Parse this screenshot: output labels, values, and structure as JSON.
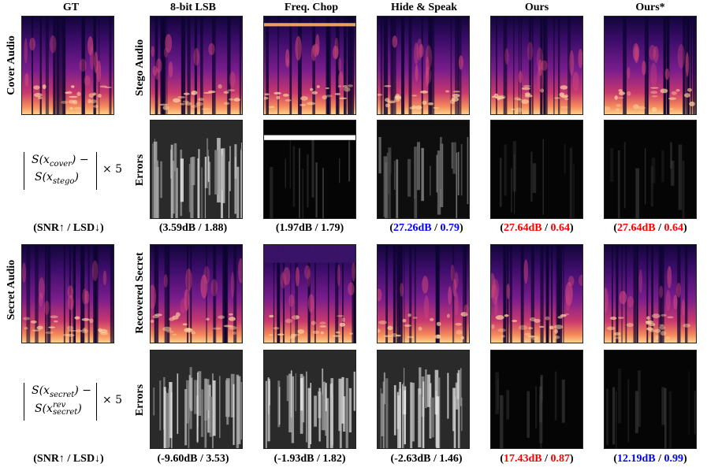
{
  "columns": {
    "gt": "GT",
    "lsb": "8-bit LSB",
    "freq": "Freq. Chop",
    "hide": "Hide & Speak",
    "ours": "Ours",
    "ours_star": "Ours*"
  },
  "row_labels": {
    "cover_audio": "Cover Audio",
    "stego_audio": "Stego Audio",
    "errors_top": "Errors",
    "secret_audio": "Secret Audio",
    "recovered_secret": "Recovered Secret",
    "errors_bottom": "Errors"
  },
  "formulas": {
    "top_line1": "S(x",
    "top_line1_sub": "cover",
    "top_line1_end": ") −",
    "top_line2": "S(x",
    "top_line2_sub": "stego",
    "top_line2_end": ")",
    "bottom_line1": "S(x",
    "bottom_line1_sub": "secret",
    "bottom_line1_end": ") −",
    "bottom_line2": "S(x",
    "bottom_line2_sup": "rev",
    "bottom_line2_sub": "secret",
    "bottom_line2_end": ")",
    "times": "× 5"
  },
  "metric_header_top": "(SNR↑ / LSD↓)",
  "metric_header_bottom": "(SNR↑ / LSD↓)",
  "metrics_top": {
    "lsb": "(3.59dB / 1.88)",
    "freq": "(1.97dB / 1.79)",
    "hide_open": "(",
    "hide_snr": "27.26dB",
    "hide_sep": " / ",
    "hide_lsd": "0.79",
    "hide_close": ")",
    "ours_open": "(",
    "ours_snr": "27.64dB",
    "ours_sep": " / ",
    "ours_lsd": "0.64",
    "ours_close": ")",
    "ours_star_open": "(",
    "ours_star_snr": "27.64dB",
    "ours_star_sep": " / ",
    "ours_star_lsd": "0.64",
    "ours_star_close": ")"
  },
  "metrics_bottom": {
    "lsb": "(-9.60dB / 3.53)",
    "freq": "(-1.93dB / 1.82)",
    "hide": "(-2.63dB / 1.46)",
    "ours_open": "(",
    "ours_snr": "17.43dB",
    "ours_sep": " / ",
    "ours_lsd": "0.87",
    "ours_close": ")",
    "ours_star_open": "(",
    "ours_star_snr": "12.19dB",
    "ours_star_sep": " / ",
    "ours_star_lsd": "0.99",
    "ours_star_close": ")"
  },
  "colors": {
    "highlight_best": "#ff0000",
    "highlight_second": "#0000ff"
  }
}
